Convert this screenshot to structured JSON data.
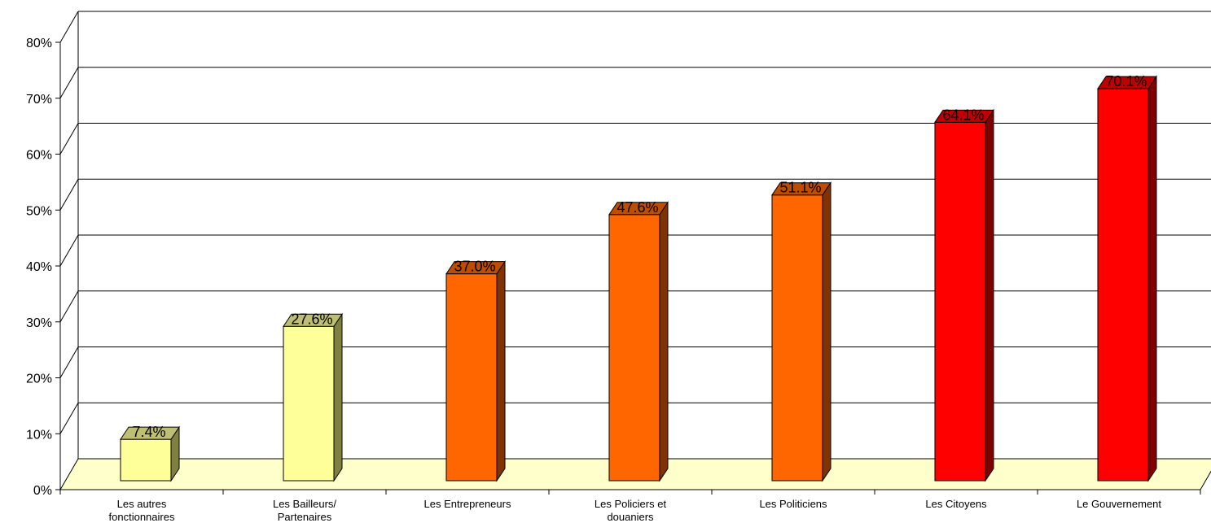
{
  "chart_data": {
    "type": "bar",
    "title": "",
    "xlabel": "",
    "ylabel": "",
    "ylim": [
      0,
      80
    ],
    "y_ticks": [
      "0%",
      "10%",
      "20%",
      "30%",
      "40%",
      "50%",
      "60%",
      "70%",
      "80%"
    ],
    "grid": "horizontal",
    "style": "3d",
    "categories": [
      [
        "Les autres",
        "fonctionnaires"
      ],
      [
        "Les Bailleurs/",
        "Partenaires"
      ],
      [
        "Les Entrepreneurs"
      ],
      [
        "Les Policiers et",
        "douaniers"
      ],
      [
        "Les Politiciens"
      ],
      [
        "Les Citoyens"
      ],
      [
        "Le Gouvernement"
      ]
    ],
    "values": [
      7.4,
      27.6,
      37.0,
      47.6,
      51.1,
      64.1,
      70.1
    ],
    "data_labels": [
      "7.4%",
      "27.6%",
      "37.0%",
      "47.6%",
      "51.1%",
      "64.1%",
      "70.1%"
    ],
    "colors": {
      "bars": [
        {
          "front": "#FFFF99",
          "side": "#808040",
          "top": "#BFBF73"
        },
        {
          "front": "#FFFF99",
          "side": "#808040",
          "top": "#BFBF73"
        },
        {
          "front": "#FF6600",
          "side": "#803300",
          "top": "#BF4D00"
        },
        {
          "front": "#FF6600",
          "side": "#803300",
          "top": "#BF4D00"
        },
        {
          "front": "#FF6600",
          "side": "#803300",
          "top": "#BF4D00"
        },
        {
          "front": "#FF0000",
          "side": "#800000",
          "top": "#BF0000"
        },
        {
          "front": "#FF0000",
          "side": "#800000",
          "top": "#BF0000"
        }
      ],
      "floor": "#FFFFCC",
      "gridline": "#000000"
    }
  }
}
